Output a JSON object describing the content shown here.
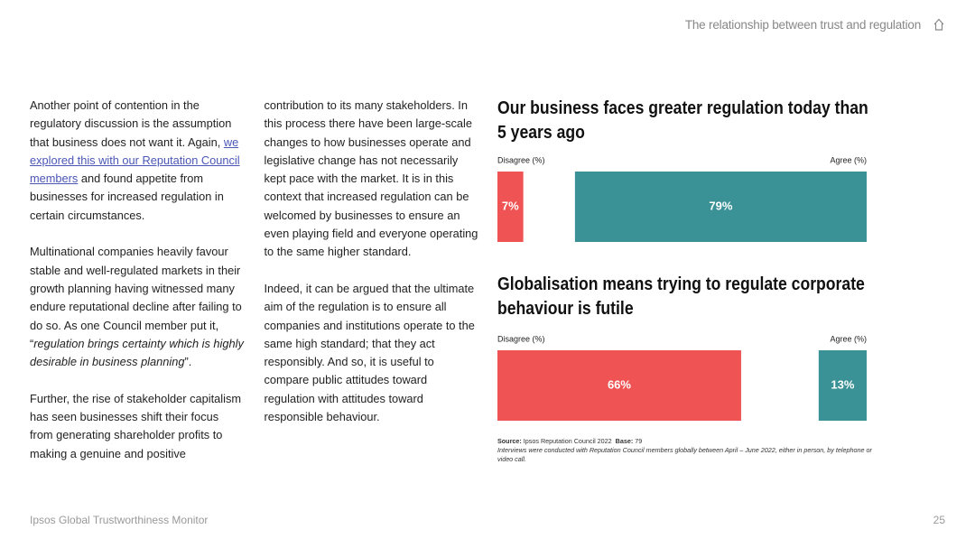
{
  "header": {
    "title": "The relationship between trust and regulation"
  },
  "body": {
    "paragraphs": [
      {
        "before": "Another point of contention in the regulatory discussion is the assumption that business does not want it. Again, ",
        "link": "we explored this with our Reputation Council members",
        "after": " and found appetite from businesses for increased regulation in certain circumstances."
      },
      {
        "before": "Multinational companies heavily favour stable and well-regulated markets in their growth planning having witnessed many endure reputational decline after failing to do so. As one Council member put it, “",
        "quote": "regulation brings certainty which is highly desirable in business planning",
        "after": "”."
      },
      {
        "text": "Further, the rise of stakeholder capitalism has seen businesses shift their focus from generating shareholder profits to making a genuine and positive contribution to its many stakeholders. In this process there have been large-scale changes to how businesses operate and legislative change has not necessarily kept pace with the market. It is in this context that increased regulation can be welcomed by businesses to ensure an even playing field and everyone operating to the same higher standard."
      },
      {
        "text": "Indeed, it can be argued that the ultimate aim of the regulation is to ensure all companies and institutions operate to the same high standard; that they act responsibly. And so, it is useful to compare public attitudes toward regulation with attitudes toward responsible behaviour."
      }
    ]
  },
  "chart_data": [
    {
      "type": "bar",
      "title": "Our business faces greater regulation today than 5 years ago",
      "xlim": [
        0,
        100
      ],
      "series": [
        {
          "name": "Disagree (%)",
          "color": "#f05353",
          "values": [
            7
          ],
          "value_labels": [
            "7%"
          ]
        },
        {
          "name": "Agree (%)",
          "color": "#3a9196",
          "values": [
            79
          ],
          "value_labels": [
            "79%"
          ]
        }
      ]
    },
    {
      "type": "bar",
      "title": "Globalisation means trying to regulate corporate behaviour is futile",
      "xlim": [
        0,
        100
      ],
      "series": [
        {
          "name": "Disagree (%)",
          "color": "#f05353",
          "values": [
            66
          ],
          "value_labels": [
            "66%"
          ]
        },
        {
          "name": "Agree (%)",
          "color": "#3a9196",
          "values": [
            13
          ],
          "value_labels": [
            "13%"
          ]
        }
      ]
    }
  ],
  "source": {
    "label": "Source:",
    "text": "Ipsos Reputation Council 2022",
    "base_label": "Base:",
    "base": "79",
    "note": "Interviews were conducted with Reputation Council members globally between April – June 2022, either in person, by telephone or video call."
  },
  "footer": {
    "title": "Ipsos Global Trustworthiness Monitor",
    "page": "25"
  }
}
